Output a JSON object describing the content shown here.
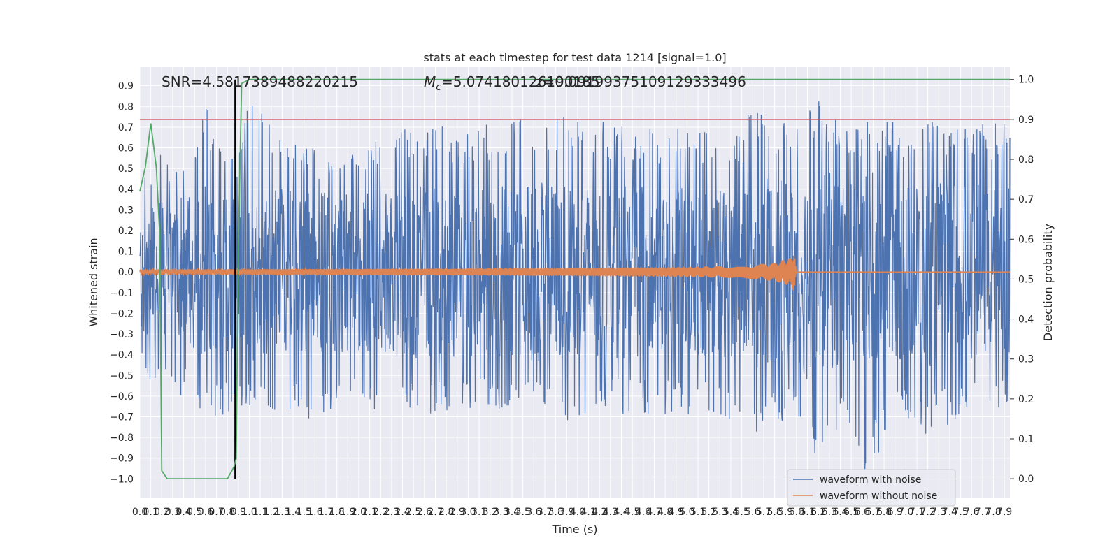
{
  "chart_data": {
    "type": "line",
    "title": "stats at each timestep for test data 1214 [signal=1.0]",
    "xlabel": "Time (s)",
    "ylabel": "Whitened strain",
    "ylabel_right": "Detection probability",
    "xlim": [
      0.0,
      7.95
    ],
    "ylim": [
      -1.09,
      0.99
    ],
    "ylim_right": [
      -0.047,
      1.031
    ],
    "grid": true,
    "x_tick_labels": [
      "0.0",
      "0.1",
      "0.2",
      "0.3",
      "0.4",
      "0.5",
      "0.6",
      "0.7",
      "0.8",
      "0.9",
      "1.0",
      "1.1",
      "1.2",
      "1.3",
      "1.4",
      "1.5",
      "1.6",
      "1.7",
      "1.8",
      "1.9",
      "2.0",
      "2.1",
      "2.2",
      "2.3",
      "2.4",
      "2.5",
      "2.6",
      "2.7",
      "2.8",
      "2.9",
      "3.0",
      "3.1",
      "3.2",
      "3.3",
      "3.4",
      "3.5",
      "3.6",
      "3.7",
      "3.8",
      "3.9",
      "4.0",
      "4.1",
      "4.2",
      "4.3",
      "4.4",
      "4.5",
      "4.6",
      "4.7",
      "4.8",
      "4.9",
      "5.0",
      "5.1",
      "5.2",
      "5.3",
      "5.4",
      "5.5",
      "5.6",
      "5.7",
      "5.8",
      "5.9",
      "6.0",
      "6.1",
      "6.2",
      "6.3",
      "6.4",
      "6.5",
      "6.6",
      "6.7",
      "6.8",
      "6.9",
      "7.0",
      "7.1",
      "7.2",
      "7.3",
      "7.4",
      "7.5",
      "7.6",
      "7.7",
      "7.8",
      "7.9"
    ],
    "y_tick_labels": [
      "0.9",
      "0.8",
      "0.7",
      "0.6",
      "0.5",
      "0.4",
      "0.3",
      "0.2",
      "0.1",
      "0.0",
      "−0.1",
      "−0.2",
      "−0.3",
      "−0.4",
      "−0.5",
      "−0.6",
      "−0.7",
      "−0.8",
      "−0.9",
      "−1.0"
    ],
    "y_right_tick_labels": [
      "1.0",
      "0.9",
      "0.8",
      "0.7",
      "0.6",
      "0.5",
      "0.4",
      "0.3",
      "0.2",
      "0.1",
      "0.0"
    ],
    "annotations": {
      "snr": "SNR=4.5817389488220215",
      "mc_prefix": "M",
      "mc_sub": "c",
      "mc_value": "=5.074180126190185",
      "overlap": "z=0.09199375109129333496"
    },
    "series": [
      {
        "name": "waveform with noise",
        "color": "#4c72b0",
        "axis": "left",
        "envelope": {
          "x": [
            0.0,
            0.05,
            0.1,
            0.15,
            0.2,
            0.3,
            0.4,
            0.5,
            0.6,
            0.7,
            0.8,
            0.9,
            1.0,
            1.5,
            2.0,
            2.5,
            3.0,
            3.5,
            4.0,
            4.5,
            5.0,
            5.5,
            5.6,
            6.0,
            6.1,
            6.5,
            6.6,
            7.0,
            7.2,
            7.5,
            7.95
          ],
          "max": [
            0.4,
            0.5,
            0.55,
            0.73,
            0.6,
            0.55,
            0.6,
            0.58,
            0.88,
            0.6,
            0.6,
            0.6,
            0.83,
            0.6,
            0.6,
            0.72,
            0.7,
            0.75,
            0.75,
            0.7,
            0.7,
            0.68,
            0.82,
            0.7,
            0.89,
            0.7,
            0.74,
            0.72,
            0.73,
            0.72,
            0.72
          ],
          "min": [
            -0.45,
            -0.5,
            -0.57,
            -0.6,
            -0.63,
            -0.62,
            -0.6,
            -0.68,
            -0.65,
            -0.72,
            -0.7,
            -0.68,
            -0.66,
            -0.72,
            -0.68,
            -0.7,
            -0.66,
            -0.7,
            -0.72,
            -0.68,
            -0.7,
            -0.72,
            -0.78,
            -0.7,
            -0.92,
            -0.75,
            -0.97,
            -0.72,
            -0.8,
            -0.7,
            -0.65
          ]
        }
      },
      {
        "name": "waveform without noise",
        "color": "#dd8452",
        "axis": "left",
        "amplitude_envelope": {
          "x": [
            0.0,
            1.0,
            2.0,
            3.0,
            4.0,
            5.0,
            5.5,
            5.8,
            5.95,
            5.98,
            6.0,
            7.95
          ],
          "amp": [
            0.012,
            0.014,
            0.015,
            0.017,
            0.02,
            0.025,
            0.03,
            0.045,
            0.07,
            0.1,
            0.0,
            0.0
          ]
        }
      },
      {
        "name": "detection probability",
        "color": "#55a868",
        "axis": "right",
        "x": [
          0.0,
          0.05,
          0.1,
          0.15,
          0.18,
          0.2,
          0.25,
          0.3,
          0.5,
          0.7,
          0.8,
          0.86,
          0.88,
          0.9,
          0.93,
          1.0,
          7.95
        ],
        "y": [
          0.72,
          0.78,
          0.89,
          0.78,
          0.62,
          0.02,
          0.0,
          0.0,
          0.0,
          0.0,
          0.0,
          0.03,
          0.05,
          0.58,
          0.99,
          1.0,
          1.0
        ]
      }
    ],
    "reference_lines": [
      {
        "kind": "horizontal",
        "axis": "right",
        "value": 0.9,
        "color": "#c44e52"
      },
      {
        "kind": "vertical",
        "value": 0.87,
        "color": "#000000"
      }
    ],
    "legend": {
      "position": "lower-right",
      "entries": [
        "waveform with noise",
        "waveform without noise"
      ]
    }
  }
}
